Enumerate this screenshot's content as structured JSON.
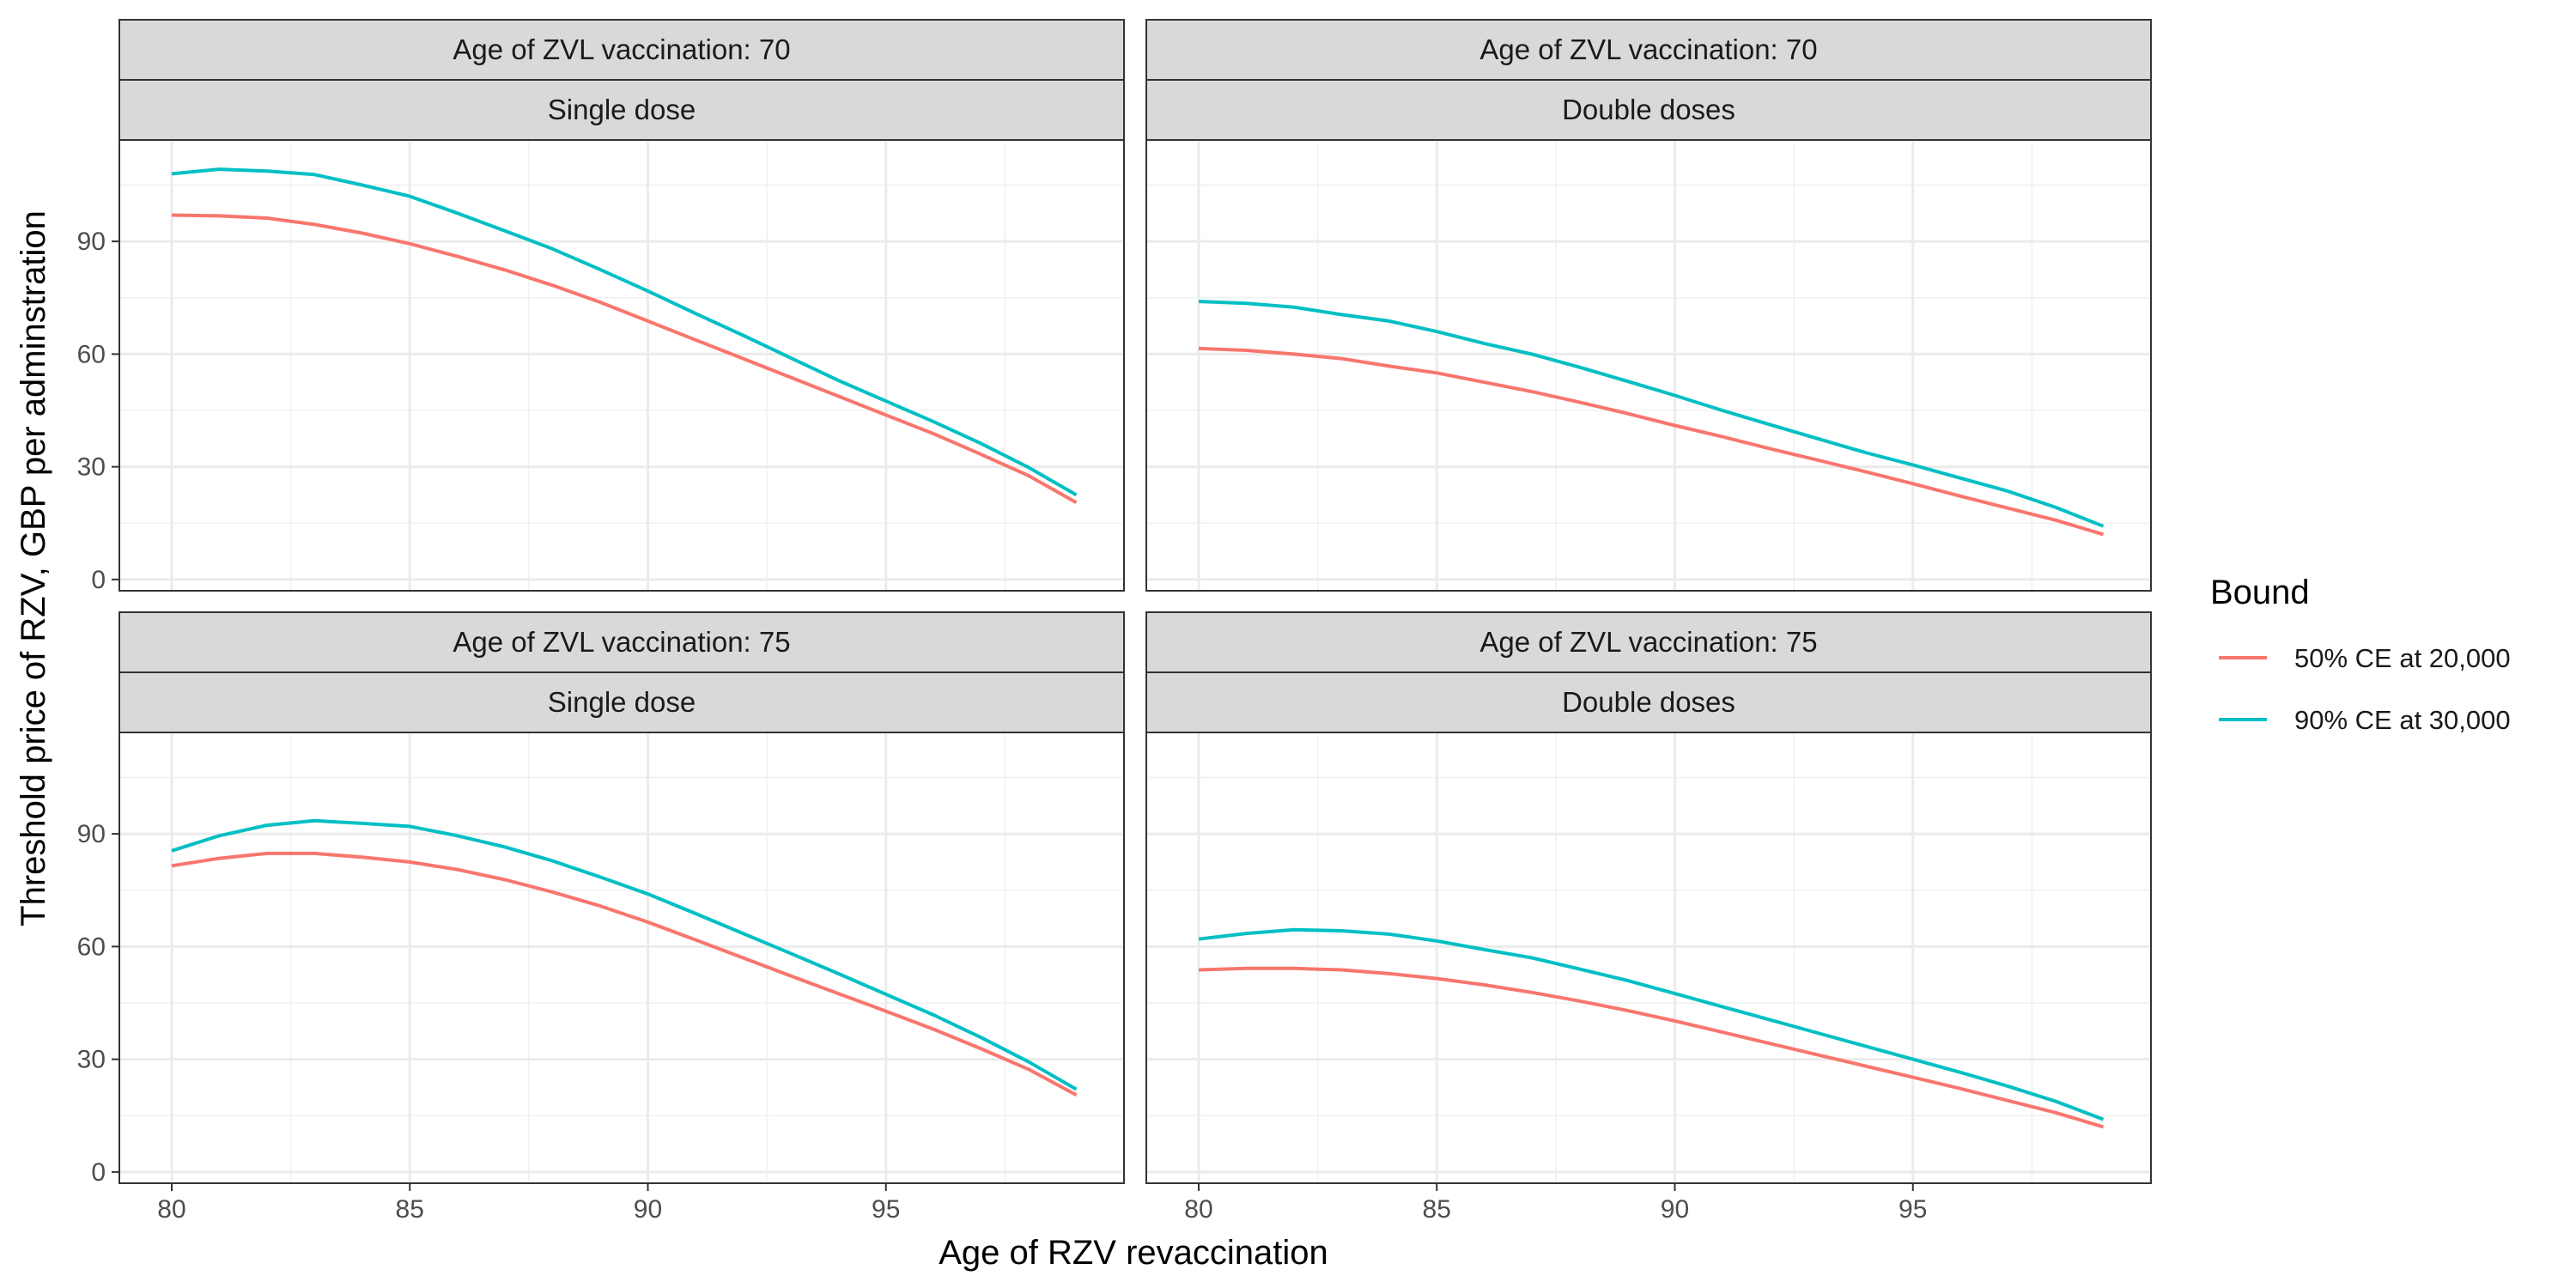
{
  "chart_data": {
    "type": "line",
    "xlabel": "Age of RZV revaccination",
    "ylabel": "Threshold price of RZV, GBP per adminstration",
    "xlim": [
      78.9,
      100.0
    ],
    "ylim": [
      -3,
      117
    ],
    "x_ticks": [
      80,
      85,
      90,
      95
    ],
    "y_ticks": [
      0,
      30,
      60,
      90
    ],
    "grid": true,
    "legend": {
      "title": "Bound",
      "position": "right",
      "entries": [
        {
          "label": "50% CE at 20,000",
          "color": "#F8766D"
        },
        {
          "label": "90% CE at 30,000",
          "color": "#00BFC4"
        }
      ]
    },
    "x": [
      80,
      81,
      82,
      83,
      84,
      85,
      86,
      87,
      88,
      89,
      90,
      91,
      92,
      93,
      94,
      95,
      96,
      97,
      98,
      99
    ],
    "panels": [
      {
        "strip_top": "Age of ZVL vaccination: 70",
        "strip_bottom": "Single dose",
        "series": [
          {
            "name": "50% CE at 20,000",
            "values": [
              97,
              96.8,
              96.2,
              94.5,
              92.2,
              89.4,
              86,
              82.4,
              78.3,
              73.8,
              68.8,
              63.8,
              58.8,
              53.8,
              48.8,
              43.8,
              38.8,
              33.3,
              27.6,
              20.5
            ]
          },
          {
            "name": "90% CE at 30,000",
            "values": [
              108,
              109.2,
              108.7,
              107.8,
              105,
              102,
              97.5,
              92.8,
              88,
              82.5,
              76.8,
              70.8,
              65,
              59,
              53,
              47.5,
              42,
              36.2,
              29.8,
              22.5
            ]
          }
        ]
      },
      {
        "strip_top": "Age of ZVL vaccination: 70",
        "strip_bottom": "Double doses",
        "series": [
          {
            "name": "50% CE at 20,000",
            "values": [
              61.5,
              61,
              60,
              58.8,
              56.8,
              55,
              52.5,
              50,
              47.2,
              44.2,
              41,
              38,
              34.8,
              31.8,
              28.7,
              25.5,
              22.2,
              19,
              15.8,
              12
            ]
          },
          {
            "name": "90% CE at 30,000",
            "values": [
              74,
              73.5,
              72.5,
              70.5,
              68.8,
              66,
              62.8,
              60,
              56.5,
              52.8,
              49,
              45,
              41.2,
              37.5,
              33.8,
              30.5,
              27,
              23.5,
              19.2,
              14.2
            ]
          }
        ]
      },
      {
        "strip_top": "Age of ZVL vaccination: 75",
        "strip_bottom": "Single dose",
        "series": [
          {
            "name": "50% CE at 20,000",
            "values": [
              81.5,
              83.5,
              84.8,
              84.8,
              83.8,
              82.5,
              80.5,
              77.8,
              74.5,
              70.8,
              66.5,
              61.8,
              57,
              52.2,
              47.5,
              42.8,
              38,
              32.8,
              27.3,
              20.5
            ]
          },
          {
            "name": "90% CE at 30,000",
            "values": [
              85.5,
              89.5,
              92.3,
              93.5,
              92.8,
              92,
              89.5,
              86.5,
              82.8,
              78.5,
              74,
              68.8,
              63.5,
              58.2,
              52.8,
              47.3,
              41.8,
              35.8,
              29.3,
              22
            ]
          }
        ]
      },
      {
        "strip_top": "Age of ZVL vaccination: 75",
        "strip_bottom": "Double doses",
        "series": [
          {
            "name": "50% CE at 20,000",
            "values": [
              53.8,
              54.2,
              54.2,
              53.8,
              52.8,
              51.5,
              49.8,
              47.8,
              45.5,
              43,
              40.2,
              37.2,
              34.2,
              31.2,
              28.2,
              25.2,
              22.2,
              19,
              15.8,
              12
            ]
          },
          {
            "name": "90% CE at 30,000",
            "values": [
              62,
              63.5,
              64.5,
              64.2,
              63.3,
              61.5,
              59.2,
              57,
              54,
              51,
              47.5,
              44,
              40.5,
              37,
              33.5,
              30,
              26.5,
              22.8,
              18.8,
              14
            ]
          }
        ]
      }
    ]
  }
}
